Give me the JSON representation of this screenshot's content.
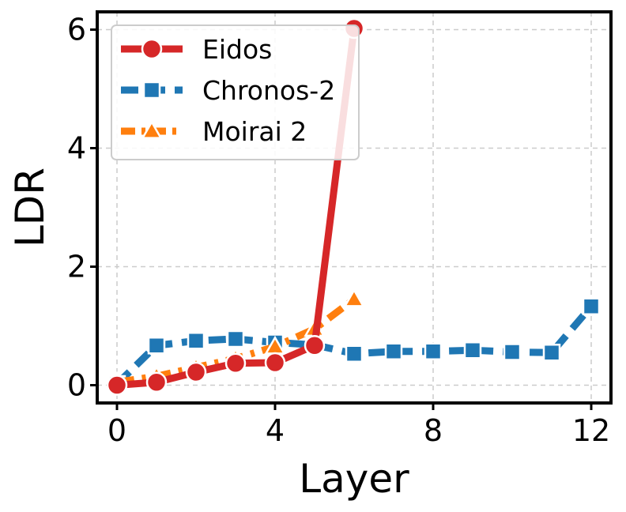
{
  "chart_data": {
    "type": "line",
    "xlabel": "Layer",
    "ylabel": "LDR",
    "xlim": [
      -0.5,
      12.5
    ],
    "ylim": [
      -0.3,
      6.3
    ],
    "xticks": [
      0,
      4,
      8,
      12
    ],
    "yticks": [
      0,
      2,
      4,
      6
    ],
    "grid": true,
    "legend_position": "top-left",
    "series": [
      {
        "name": "Eidos",
        "color": "#d62728",
        "marker": "circle",
        "linestyle": "solid",
        "x": [
          0,
          1,
          2,
          3,
          4,
          5,
          6
        ],
        "y": [
          0.0,
          0.05,
          0.22,
          0.37,
          0.38,
          0.67,
          6.02
        ]
      },
      {
        "name": "Chronos-2",
        "color": "#1f77b4",
        "marker": "square",
        "linestyle": "dashed",
        "x": [
          0,
          1,
          2,
          3,
          4,
          5,
          6,
          7,
          8,
          9,
          10,
          11,
          12
        ],
        "y": [
          0.02,
          0.67,
          0.75,
          0.78,
          0.72,
          0.68,
          0.53,
          0.57,
          0.57,
          0.59,
          0.56,
          0.55,
          1.33
        ]
      },
      {
        "name": "Moirai 2",
        "color": "#ff7f0e",
        "marker": "triangle",
        "linestyle": "dashdot",
        "x": [
          0,
          1,
          2,
          3,
          4,
          5,
          6
        ],
        "y": [
          0.05,
          0.15,
          0.3,
          0.45,
          0.65,
          0.95,
          1.45
        ]
      }
    ]
  }
}
